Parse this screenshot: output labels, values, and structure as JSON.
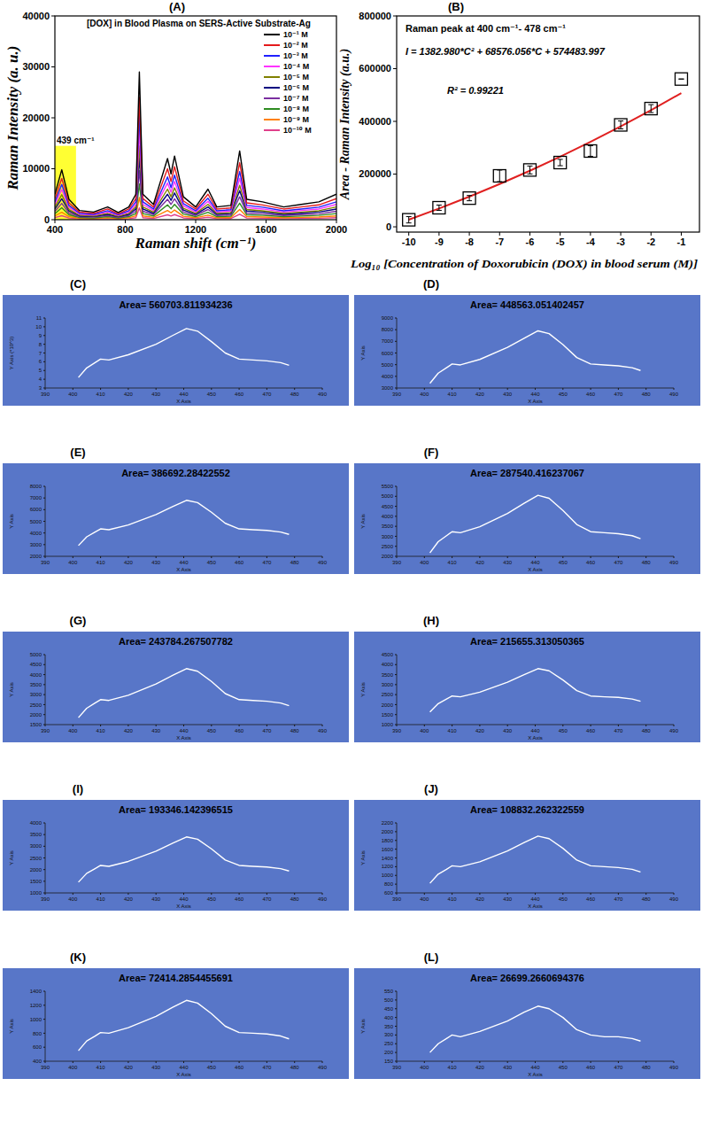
{
  "chart_data": [
    {
      "type": "line",
      "panel_label": "(A)",
      "title": "[DOX]  in  Blood Plasma on  SERS-Active Substrate-Ag",
      "x_label": "Raman shift (cm⁻¹)",
      "y_label": "Raman Intensity (a. u.)",
      "x": [
        400,
        439,
        480,
        540,
        620,
        700,
        760,
        820,
        860,
        880,
        900,
        960,
        1040,
        1060,
        1080,
        1130,
        1200,
        1270,
        1320,
        1400,
        1450,
        1490,
        1580,
        1700,
        1800,
        1900,
        2000
      ],
      "xlim": [
        400,
        2000
      ],
      "xticks": [
        400,
        800,
        1200,
        1600,
        2000
      ],
      "ylim": [
        0,
        40000
      ],
      "yticks": [
        0,
        10000,
        20000,
        30000,
        40000
      ],
      "legend": "right",
      "highlight": {
        "label": "439 cm⁻¹",
        "x": [
          400,
          520
        ],
        "y": [
          0,
          14500
        ],
        "color": "#ffff33"
      },
      "series": [
        {
          "name": "10⁻¹ M",
          "color": "#000000",
          "values": [
            5000,
            9800,
            4000,
            1800,
            1500,
            2500,
            1400,
            2500,
            5000,
            29000,
            5000,
            3000,
            12000,
            9000,
            12500,
            4500,
            2500,
            6000,
            2500,
            2800,
            13500,
            4000,
            3500,
            2500,
            3000,
            3500,
            5000
          ]
        },
        {
          "name": "10⁻² M",
          "color": "#e41a1c",
          "values": [
            4150,
            8100,
            3300,
            1500,
            1250,
            2100,
            1150,
            2100,
            4150,
            24000,
            4150,
            2500,
            10000,
            7500,
            10400,
            3700,
            2100,
            5000,
            2100,
            2300,
            11200,
            3300,
            2900,
            2100,
            2500,
            2900,
            4150
          ]
        },
        {
          "name": "10⁻³ M",
          "color": "#2020ff",
          "values": [
            3500,
            6900,
            2800,
            1250,
            1050,
            1750,
            1000,
            1750,
            3500,
            20500,
            3500,
            2100,
            8400,
            6300,
            8750,
            3150,
            1750,
            4200,
            1750,
            1950,
            9450,
            2800,
            2450,
            1750,
            2100,
            2450,
            3500
          ]
        },
        {
          "name": "10⁻⁴ M",
          "color": "#ff33ff",
          "values": [
            3000,
            5900,
            2400,
            1100,
            900,
            1500,
            850,
            1500,
            3000,
            17500,
            3000,
            1800,
            7200,
            5400,
            7500,
            2700,
            1500,
            3600,
            1500,
            1700,
            8100,
            2400,
            2100,
            1500,
            1800,
            2100,
            3000
          ]
        },
        {
          "name": "10⁻⁵ M",
          "color": "#808000",
          "values": [
            2500,
            4900,
            2000,
            900,
            750,
            1250,
            700,
            1250,
            2500,
            14500,
            2500,
            1500,
            6000,
            4500,
            6250,
            2250,
            1250,
            3000,
            1250,
            1400,
            6750,
            2000,
            1750,
            1250,
            1500,
            1750,
            2500
          ]
        },
        {
          "name": "10⁻⁶ M",
          "color": "#000080",
          "values": [
            2100,
            4100,
            1700,
            750,
            630,
            1050,
            590,
            1050,
            2100,
            12200,
            2100,
            1260,
            5000,
            3800,
            5250,
            1900,
            1050,
            2500,
            1050,
            1200,
            5700,
            1700,
            1500,
            1050,
            1260,
            1500,
            2100
          ]
        },
        {
          "name": "10⁻⁷ M",
          "color": "#7b2fa0",
          "values": [
            1650,
            3200,
            1300,
            600,
            500,
            830,
            460,
            830,
            1650,
            9600,
            1650,
            1000,
            4000,
            3000,
            4100,
            1500,
            830,
            2000,
            830,
            920,
            4500,
            1300,
            1150,
            830,
            1000,
            1150,
            1650
          ]
        },
        {
          "name": "10⁻⁸ M",
          "color": "#2e8b20",
          "values": [
            1200,
            2350,
            960,
            430,
            360,
            600,
            340,
            600,
            1200,
            7000,
            1200,
            720,
            2900,
            2150,
            3000,
            1100,
            600,
            1450,
            600,
            670,
            3250,
            960,
            840,
            600,
            720,
            840,
            1200
          ]
        },
        {
          "name": "10⁻⁹ M",
          "color": "#ff8000",
          "values": [
            750,
            1450,
            600,
            270,
            230,
            380,
            210,
            380,
            750,
            4350,
            750,
            450,
            1800,
            1350,
            1900,
            680,
            380,
            900,
            380,
            420,
            2000,
            600,
            530,
            380,
            450,
            530,
            750
          ]
        },
        {
          "name": "10⁻¹⁰ M",
          "color": "#e0408a",
          "values": [
            400,
            780,
            320,
            140,
            120,
            200,
            110,
            200,
            400,
            2300,
            400,
            240,
            960,
            720,
            1000,
            360,
            200,
            480,
            200,
            220,
            1080,
            320,
            280,
            200,
            240,
            280,
            400
          ]
        }
      ]
    },
    {
      "type": "scatter",
      "panel_label": "(B)",
      "x_label": "Log₁₀ [Concentration of Doxorubicin (DOX) in  blood serum (M)]",
      "y_label": "Area - Raman Intensity  (a.u.)",
      "annotations": [
        "Raman peak at 400 cm⁻¹- 478 cm⁻¹",
        "I = 1382.980*C² + 68576.056*C + 574483.997",
        "R² = 0.99221"
      ],
      "x": [
        -10,
        -9,
        -8,
        -7,
        -6,
        -5,
        -4,
        -3,
        -2,
        -1
      ],
      "xlim": [
        -10.4,
        -0.4
      ],
      "xticks": [
        -10,
        -9,
        -8,
        -7,
        -6,
        -5,
        -4,
        -3,
        -2,
        -1
      ],
      "ylim": [
        -20000,
        800000
      ],
      "yticks": [
        0,
        200000,
        400000,
        600000,
        800000
      ],
      "series": [
        {
          "type": "scatter",
          "marker": "square",
          "color": "#000000",
          "values": [
            26699,
            72414,
            108832,
            193346,
            215655,
            243784,
            287540,
            386692,
            448563,
            560703
          ],
          "errors": [
            12000,
            10000,
            10000,
            22000,
            15000,
            12000,
            20000,
            15000,
            15000,
            0
          ]
        },
        {
          "type": "line",
          "color": "#e02020",
          "values": [
            27022,
            69320,
            114387,
            162218,
            212815,
            266179,
            322308,
            381203,
            442864,
            507291
          ]
        }
      ]
    },
    {
      "type": "line",
      "panel_label": "(C)",
      "title": "Area= 560703.811934236",
      "x_label": "X Axis",
      "y_label": "Y Axis (*10^3)",
      "color": "#ffffff",
      "x": [
        402,
        405,
        408,
        410,
        413,
        420,
        430,
        436,
        441,
        445,
        450,
        455,
        460,
        465,
        470,
        475,
        478
      ],
      "xlim": [
        390,
        490
      ],
      "xticks": [
        390,
        400,
        410,
        420,
        430,
        440,
        450,
        460,
        470,
        480,
        490
      ],
      "ylim": [
        3,
        11
      ],
      "yticks": [
        3,
        4,
        5,
        6,
        7,
        8,
        9,
        10,
        11
      ],
      "values": [
        4.2,
        5.3,
        5.9,
        6.3,
        6.2,
        6.8,
        8.0,
        9.0,
        9.8,
        9.5,
        8.3,
        7.0,
        6.3,
        6.2,
        6.1,
        5.9,
        5.6
      ]
    },
    {
      "type": "line",
      "panel_label": "(D)",
      "title": "Area= 448563.051402457",
      "x_label": "X Axis",
      "y_label": "Y Axis",
      "color": "#ffffff",
      "x": [
        402,
        405,
        408,
        410,
        413,
        420,
        430,
        436,
        441,
        445,
        450,
        455,
        460,
        465,
        470,
        475,
        478
      ],
      "xlim": [
        390,
        490
      ],
      "xticks": [
        390,
        400,
        410,
        420,
        430,
        440,
        450,
        460,
        470,
        480,
        490
      ],
      "ylim": [
        3000,
        9000
      ],
      "yticks": [
        3000,
        4000,
        5000,
        6000,
        7000,
        8000,
        9000
      ],
      "values": [
        3400,
        4270,
        4740,
        5060,
        4980,
        5450,
        6480,
        7270,
        7900,
        7660,
        6720,
        5610,
        5060,
        4980,
        4900,
        4740,
        4500
      ]
    },
    {
      "type": "line",
      "panel_label": "(E)",
      "title": "Area= 386692.28422552",
      "x_label": "X Axis",
      "y_label": "Y Axis",
      "color": "#ffffff",
      "x": [
        402,
        405,
        408,
        410,
        413,
        420,
        430,
        436,
        441,
        445,
        450,
        455,
        460,
        465,
        470,
        475,
        478
      ],
      "xlim": [
        390,
        490
      ],
      "xticks": [
        390,
        400,
        410,
        420,
        430,
        440,
        450,
        460,
        470,
        480,
        490
      ],
      "ylim": [
        2000,
        8000
      ],
      "yticks": [
        2000,
        3000,
        4000,
        5000,
        6000,
        7000,
        8000
      ],
      "values": [
        2920,
        3670,
        4080,
        4350,
        4280,
        4690,
        5580,
        6260,
        6800,
        6600,
        5780,
        4830,
        4350,
        4280,
        4220,
        4080,
        3880
      ]
    },
    {
      "type": "line",
      "panel_label": "(F)",
      "title": "Area= 287540.416237067",
      "x_label": "X Axis",
      "y_label": "Y Axis",
      "color": "#ffffff",
      "x": [
        402,
        405,
        408,
        410,
        413,
        420,
        430,
        436,
        441,
        445,
        450,
        455,
        460,
        465,
        470,
        475,
        478
      ],
      "xlim": [
        390,
        490
      ],
      "xticks": [
        390,
        400,
        410,
        420,
        430,
        440,
        450,
        460,
        470,
        480,
        490
      ],
      "ylim": [
        2000,
        5500
      ],
      "yticks": [
        2000,
        2500,
        3000,
        3500,
        4000,
        4500,
        5000,
        5500
      ],
      "values": [
        2170,
        2730,
        3030,
        3230,
        3180,
        3480,
        4140,
        4650,
        5050,
        4900,
        4290,
        3590,
        3230,
        3180,
        3130,
        3030,
        2880
      ]
    },
    {
      "type": "line",
      "panel_label": "(G)",
      "title": "Area= 243784.267507782",
      "x_label": "X Axis",
      "y_label": "Y Axis",
      "color": "#ffffff",
      "x": [
        402,
        405,
        408,
        410,
        413,
        420,
        430,
        436,
        441,
        445,
        450,
        455,
        460,
        465,
        470,
        475,
        478
      ],
      "xlim": [
        390,
        490
      ],
      "xticks": [
        390,
        400,
        410,
        420,
        430,
        440,
        450,
        460,
        470,
        480,
        490
      ],
      "ylim": [
        1500,
        5000
      ],
      "yticks": [
        1500,
        2000,
        2500,
        3000,
        3500,
        4000,
        4500,
        5000
      ],
      "values": [
        1850,
        2320,
        2580,
        2750,
        2710,
        2970,
        3530,
        3960,
        4300,
        4170,
        3660,
        3050,
        2750,
        2710,
        2670,
        2580,
        2450
      ]
    },
    {
      "type": "line",
      "panel_label": "(H)",
      "title": "Area= 215655.313050365",
      "x_label": "X Axis",
      "y_label": "Y Axis",
      "color": "#ffffff",
      "x": [
        402,
        405,
        408,
        410,
        413,
        420,
        430,
        436,
        441,
        445,
        450,
        455,
        460,
        465,
        470,
        475,
        478
      ],
      "xlim": [
        390,
        490
      ],
      "xticks": [
        390,
        400,
        410,
        420,
        430,
        440,
        450,
        460,
        470,
        480,
        490
      ],
      "ylim": [
        1000,
        4500
      ],
      "yticks": [
        1000,
        1500,
        2000,
        2500,
        3000,
        3500,
        4000,
        4500
      ],
      "values": [
        1630,
        2050,
        2280,
        2430,
        2390,
        2620,
        3120,
        3500,
        3800,
        3690,
        3230,
        2700,
        2430,
        2390,
        2360,
        2280,
        2170
      ]
    },
    {
      "type": "line",
      "panel_label": "(I)",
      "title": "Area= 193346.142396515",
      "x_label": "X Axis",
      "y_label": "Y Axis",
      "color": "#ffffff",
      "x": [
        402,
        405,
        408,
        410,
        413,
        420,
        430,
        436,
        441,
        445,
        450,
        455,
        460,
        465,
        470,
        475,
        478
      ],
      "xlim": [
        390,
        490
      ],
      "xticks": [
        390,
        400,
        410,
        420,
        430,
        440,
        450,
        460,
        470,
        480,
        490
      ],
      "ylim": [
        1000,
        4000
      ],
      "yticks": [
        1000,
        1500,
        2000,
        2500,
        3000,
        3500,
        4000
      ],
      "values": [
        1460,
        1840,
        2040,
        2180,
        2140,
        2350,
        2790,
        3130,
        3400,
        3300,
        2890,
        2410,
        2180,
        2140,
        2110,
        2040,
        1940
      ]
    },
    {
      "type": "line",
      "panel_label": "(J)",
      "title": "Area= 108832.262322559",
      "x_label": "X Axis",
      "y_label": "Y Axis",
      "color": "#ffffff",
      "x": [
        402,
        405,
        408,
        410,
        413,
        420,
        430,
        436,
        441,
        445,
        450,
        455,
        460,
        465,
        470,
        475,
        478
      ],
      "xlim": [
        390,
        490
      ],
      "xticks": [
        390,
        400,
        410,
        420,
        430,
        440,
        450,
        460,
        470,
        480,
        490
      ],
      "ylim": [
        600,
        2200
      ],
      "yticks": [
        600,
        800,
        1000,
        1200,
        1400,
        1600,
        1800,
        2000,
        2200
      ],
      "values": [
        820,
        1030,
        1140,
        1220,
        1200,
        1310,
        1560,
        1750,
        1900,
        1840,
        1620,
        1350,
        1220,
        1200,
        1180,
        1140,
        1080
      ]
    },
    {
      "type": "line",
      "panel_label": "(K)",
      "title": "Area= 72414.2854455691",
      "x_label": "X Axis",
      "y_label": "Y Axis",
      "color": "#ffffff",
      "x": [
        402,
        405,
        408,
        410,
        413,
        420,
        430,
        436,
        441,
        445,
        450,
        455,
        460,
        465,
        470,
        475,
        478
      ],
      "xlim": [
        390,
        490
      ],
      "xticks": [
        390,
        400,
        410,
        420,
        430,
        440,
        450,
        460,
        470,
        480,
        490
      ],
      "ylim": [
        400,
        1400
      ],
      "yticks": [
        400,
        600,
        800,
        1000,
        1200,
        1400
      ],
      "values": [
        550,
        690,
        760,
        810,
        800,
        880,
        1040,
        1170,
        1270,
        1230,
        1080,
        900,
        810,
        800,
        790,
        760,
        720
      ]
    },
    {
      "type": "line",
      "panel_label": "(L)",
      "title": "Area= 26699.2660694376",
      "x_label": "X Axis",
      "y_label": "Y Axis",
      "color": "#ffffff",
      "x": [
        402,
        405,
        408,
        410,
        413,
        420,
        430,
        436,
        441,
        445,
        450,
        455,
        460,
        465,
        470,
        475,
        478
      ],
      "xlim": [
        390,
        490
      ],
      "xticks": [
        390,
        400,
        410,
        420,
        430,
        440,
        450,
        460,
        470,
        480,
        490
      ],
      "ylim": [
        150,
        550
      ],
      "yticks": [
        150,
        200,
        250,
        300,
        350,
        400,
        450,
        500,
        550
      ],
      "values": [
        200,
        250,
        280,
        300,
        290,
        320,
        380,
        430,
        465,
        450,
        400,
        330,
        300,
        290,
        290,
        280,
        265
      ]
    }
  ]
}
